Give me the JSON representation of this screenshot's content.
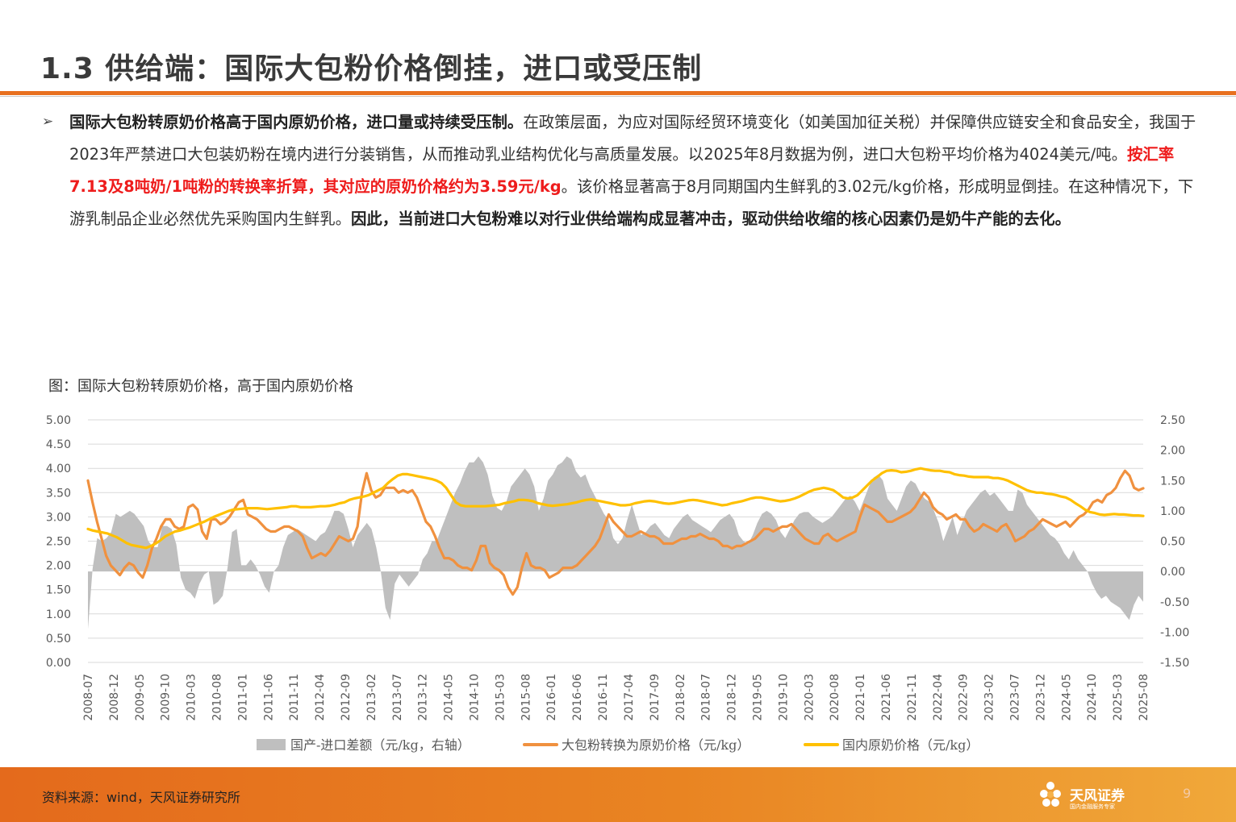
{
  "slide": {
    "title": "1.3 供给端：国际大包粉价格倒挂，进口或受压制",
    "page_number": "9"
  },
  "body": {
    "bullet_symbol": "➢",
    "s1_bold": "国际大包粉转原奶价格高于国内原奶价格，进口量或持续受压制。",
    "s2": "在政策层面，为应对国际经贸环境变化（如美国加征关税）并保障供应链安全和食品安全，我国于2023年严禁进口大包装奶粉在境内进行分装销售，从而推动乳业结构优化与高质量发展。以2025年8月数据为例，进口大包粉平均价格为4024美元/吨。",
    "s3_red": "按汇率7.13及8吨奶/1吨粉的转换率折算，其对应的原奶价格约为3.59元/kg",
    "s4": "。该价格显著高于8月同期国内生鲜乳的3.02元/kg价格，形成明显倒挂。在这种情况下，下游乳制品企业必然优先采购国内生鲜乳。",
    "s5_bold": "因此，当前进口大包粉难以对行业供给端构成显著冲击，驱动供给收缩的核心因素仍是奶牛产能的去化。"
  },
  "chart_caption": "图：国际大包粉转原奶价格，高于国内原奶价格",
  "footer": {
    "source": "资料来源：wind，天风证券研究所",
    "logo_text": "天风证券",
    "logo_sub": "国内金融服务专家"
  },
  "colors": {
    "area": "#bfbfbf",
    "import_line": "#f0913f",
    "domestic_line": "#ffc000",
    "grid": "#d9d9d9",
    "accent": "#e8701f"
  },
  "chart_data": {
    "type": "line",
    "title": "",
    "x_tick_labels": [
      "2008-07",
      "2008-12",
      "2009-05",
      "2009-10",
      "2010-03",
      "2010-08",
      "2011-01",
      "2011-06",
      "2011-11",
      "2012-04",
      "2012-09",
      "2013-02",
      "2013-07",
      "2013-12",
      "2014-05",
      "2014-10",
      "2015-03",
      "2015-08",
      "2016-01",
      "2016-06",
      "2016-11",
      "2017-04",
      "2017-09",
      "2018-02",
      "2018-07",
      "2018-12",
      "2019-05",
      "2019-10",
      "2020-03",
      "2020-08",
      "2021-01",
      "2021-06",
      "2021-11",
      "2022-04",
      "2022-09",
      "2023-02",
      "2023-07",
      "2023-12",
      "2024-05",
      "2024-10",
      "2025-03",
      "2025-08"
    ],
    "y_left": {
      "min": 0,
      "max": 5,
      "step": 0.5,
      "tick_labels": [
        "0.00",
        "0.50",
        "1.00",
        "1.50",
        "2.00",
        "2.50",
        "3.00",
        "3.50",
        "4.00",
        "4.50",
        "5.00"
      ]
    },
    "y_right": {
      "min": -1.5,
      "max": 2.5,
      "step": 0.5,
      "tick_labels": [
        "-1.50",
        "-1.00",
        "-0.50",
        "0.00",
        "0.50",
        "1.00",
        "1.50",
        "2.00",
        "2.50"
      ]
    },
    "grid": true,
    "legend_position": "bottom",
    "series": [
      {
        "name": "国产-进口差额（元/kg，右轴）",
        "kind": "area",
        "axis": "right",
        "values": [
          -0.95,
          0.05,
          0.55,
          0.5,
          0.55,
          0.65,
          0.95,
          0.9,
          0.95,
          1.0,
          0.95,
          0.85,
          0.75,
          0.5,
          0.4,
          0.4,
          0.75,
          0.75,
          0.7,
          0.45,
          -0.1,
          -0.3,
          -0.35,
          -0.45,
          -0.2,
          -0.05,
          0.0,
          -0.55,
          -0.5,
          -0.4,
          0.05,
          0.65,
          0.7,
          0.1,
          0.1,
          0.2,
          0.1,
          -0.05,
          -0.25,
          -0.35,
          0.0,
          0.1,
          0.4,
          0.6,
          0.65,
          0.7,
          0.65,
          0.6,
          0.55,
          0.5,
          0.6,
          0.65,
          0.8,
          1.0,
          1.0,
          0.95,
          0.7,
          0.4,
          0.6,
          0.7,
          0.8,
          0.7,
          0.4,
          0.0,
          -0.6,
          -0.8,
          -0.2,
          -0.05,
          -0.15,
          -0.25,
          -0.15,
          -0.05,
          0.2,
          0.3,
          0.5,
          0.5,
          0.7,
          0.9,
          1.1,
          1.3,
          1.45,
          1.65,
          1.8,
          1.8,
          1.9,
          1.8,
          1.6,
          1.25,
          1.05,
          1.0,
          1.15,
          1.4,
          1.5,
          1.6,
          1.7,
          1.6,
          1.4,
          1.0,
          1.2,
          1.5,
          1.6,
          1.75,
          1.8,
          1.9,
          1.85,
          1.65,
          1.55,
          1.6,
          1.4,
          1.25,
          1.1,
          0.95,
          0.85,
          0.55,
          0.45,
          0.55,
          0.85,
          1.1,
          0.85,
          0.6,
          0.65,
          0.75,
          0.8,
          0.7,
          0.6,
          0.55,
          0.7,
          0.8,
          0.9,
          0.95,
          0.85,
          0.8,
          0.75,
          0.7,
          0.65,
          0.75,
          0.85,
          0.9,
          0.95,
          0.85,
          0.6,
          0.5,
          0.45,
          0.6,
          0.8,
          0.95,
          1.0,
          0.95,
          0.85,
          0.65,
          0.55,
          0.7,
          0.85,
          0.95,
          0.98,
          0.98,
          0.9,
          0.85,
          0.8,
          0.85,
          0.9,
          1.0,
          1.1,
          1.2,
          1.25,
          1.15,
          1.0,
          1.2,
          1.4,
          1.55,
          1.6,
          1.5,
          1.2,
          1.1,
          1.0,
          1.2,
          1.4,
          1.5,
          1.45,
          1.3,
          1.2,
          1.15,
          1.0,
          0.8,
          0.5,
          0.7,
          0.9,
          0.6,
          0.8,
          1.0,
          1.1,
          1.2,
          1.3,
          1.35,
          1.25,
          1.3,
          1.2,
          1.1,
          1.0,
          1.0,
          1.35,
          1.3,
          1.1,
          1.0,
          0.9,
          0.8,
          0.7,
          0.6,
          0.55,
          0.45,
          0.3,
          0.2,
          0.35,
          0.2,
          0.1,
          0.0,
          -0.2,
          -0.35,
          -0.45,
          -0.4,
          -0.5,
          -0.55,
          -0.6,
          -0.7,
          -0.8,
          -0.55,
          -0.4,
          -0.5
        ]
      },
      {
        "name": "大包粉转换为原奶价格（元/kg）",
        "kind": "line",
        "axis": "left",
        "values": [
          3.75,
          3.3,
          2.9,
          2.55,
          2.2,
          2.0,
          1.9,
          1.8,
          1.95,
          2.05,
          2.0,
          1.85,
          1.75,
          2.0,
          2.35,
          2.55,
          2.8,
          2.95,
          2.95,
          2.8,
          2.75,
          2.8,
          3.2,
          3.25,
          3.15,
          2.7,
          2.55,
          2.95,
          2.95,
          2.85,
          2.9,
          3.0,
          3.15,
          3.3,
          3.35,
          3.05,
          3.0,
          2.95,
          2.85,
          2.75,
          2.7,
          2.7,
          2.75,
          2.8,
          2.8,
          2.75,
          2.7,
          2.6,
          2.35,
          2.15,
          2.2,
          2.25,
          2.2,
          2.3,
          2.45,
          2.6,
          2.55,
          2.5,
          2.55,
          2.8,
          3.5,
          3.9,
          3.55,
          3.4,
          3.45,
          3.6,
          3.6,
          3.6,
          3.5,
          3.55,
          3.5,
          3.55,
          3.4,
          3.15,
          2.9,
          2.8,
          2.6,
          2.35,
          2.15,
          2.15,
          2.1,
          2.0,
          1.95,
          1.95,
          1.9,
          2.1,
          2.4,
          2.4,
          2.05,
          1.95,
          1.9,
          1.8,
          1.55,
          1.4,
          1.55,
          1.95,
          2.25,
          2.0,
          1.95,
          1.95,
          1.9,
          1.75,
          1.8,
          1.85,
          1.95,
          1.95,
          1.95,
          2.0,
          2.1,
          2.2,
          2.3,
          2.4,
          2.55,
          2.8,
          3.05,
          2.9,
          2.8,
          2.7,
          2.6,
          2.6,
          2.65,
          2.7,
          2.65,
          2.6,
          2.6,
          2.55,
          2.45,
          2.45,
          2.45,
          2.5,
          2.55,
          2.55,
          2.6,
          2.6,
          2.65,
          2.6,
          2.55,
          2.55,
          2.5,
          2.4,
          2.4,
          2.35,
          2.4,
          2.4,
          2.45,
          2.5,
          2.55,
          2.65,
          2.75,
          2.75,
          2.7,
          2.75,
          2.8,
          2.8,
          2.85,
          2.75,
          2.65,
          2.55,
          2.5,
          2.45,
          2.45,
          2.6,
          2.65,
          2.55,
          2.5,
          2.55,
          2.6,
          2.65,
          2.7,
          3.0,
          3.25,
          3.2,
          3.15,
          3.1,
          3.0,
          2.9,
          2.9,
          2.95,
          3.0,
          3.05,
          3.1,
          3.2,
          3.35,
          3.5,
          3.4,
          3.2,
          3.1,
          3.05,
          2.95,
          3.0,
          3.05,
          2.95,
          2.95,
          2.8,
          2.7,
          2.75,
          2.85,
          2.8,
          2.75,
          2.7,
          2.8,
          2.85,
          2.7,
          2.5,
          2.55,
          2.6,
          2.7,
          2.75,
          2.85,
          2.95,
          2.9,
          2.85,
          2.8,
          2.85,
          2.9,
          2.8,
          2.9,
          3.0,
          3.05,
          3.15,
          3.3,
          3.35,
          3.3,
          3.45,
          3.5,
          3.6,
          3.8,
          3.95,
          3.85,
          3.6,
          3.55,
          3.59
        ]
      },
      {
        "name": "国内原奶价格（元/kg）",
        "kind": "line",
        "axis": "left",
        "values": [
          2.75,
          2.72,
          2.7,
          2.68,
          2.66,
          2.62,
          2.58,
          2.52,
          2.46,
          2.42,
          2.4,
          2.38,
          2.36,
          2.4,
          2.45,
          2.52,
          2.6,
          2.65,
          2.7,
          2.72,
          2.75,
          2.78,
          2.82,
          2.86,
          2.9,
          2.95,
          3.0,
          3.04,
          3.08,
          3.12,
          3.15,
          3.16,
          3.17,
          3.18,
          3.18,
          3.18,
          3.17,
          3.16,
          3.17,
          3.18,
          3.19,
          3.2,
          3.22,
          3.22,
          3.2,
          3.2,
          3.2,
          3.21,
          3.22,
          3.22,
          3.23,
          3.25,
          3.28,
          3.3,
          3.35,
          3.38,
          3.4,
          3.42,
          3.45,
          3.5,
          3.55,
          3.6,
          3.7,
          3.78,
          3.85,
          3.88,
          3.88,
          3.86,
          3.84,
          3.82,
          3.8,
          3.78,
          3.75,
          3.7,
          3.6,
          3.45,
          3.3,
          3.24,
          3.22,
          3.22,
          3.22,
          3.22,
          3.22,
          3.23,
          3.24,
          3.25,
          3.28,
          3.3,
          3.32,
          3.35,
          3.35,
          3.34,
          3.32,
          3.28,
          3.26,
          3.24,
          3.23,
          3.24,
          3.25,
          3.26,
          3.28,
          3.3,
          3.33,
          3.35,
          3.36,
          3.34,
          3.32,
          3.3,
          3.28,
          3.26,
          3.24,
          3.24,
          3.25,
          3.28,
          3.3,
          3.32,
          3.33,
          3.32,
          3.3,
          3.28,
          3.27,
          3.28,
          3.3,
          3.32,
          3.34,
          3.35,
          3.34,
          3.32,
          3.3,
          3.28,
          3.26,
          3.24,
          3.25,
          3.28,
          3.3,
          3.32,
          3.35,
          3.38,
          3.4,
          3.4,
          3.38,
          3.36,
          3.34,
          3.32,
          3.33,
          3.35,
          3.38,
          3.42,
          3.47,
          3.52,
          3.56,
          3.58,
          3.6,
          3.58,
          3.55,
          3.48,
          3.4,
          3.38,
          3.4,
          3.45,
          3.55,
          3.65,
          3.75,
          3.82,
          3.9,
          3.95,
          3.96,
          3.95,
          3.92,
          3.93,
          3.95,
          3.98,
          4.0,
          3.98,
          3.96,
          3.95,
          3.95,
          3.93,
          3.92,
          3.88,
          3.86,
          3.85,
          3.83,
          3.82,
          3.82,
          3.82,
          3.82,
          3.8,
          3.8,
          3.78,
          3.75,
          3.7,
          3.65,
          3.6,
          3.55,
          3.52,
          3.5,
          3.5,
          3.48,
          3.47,
          3.45,
          3.42,
          3.4,
          3.35,
          3.28,
          3.22,
          3.15,
          3.1,
          3.08,
          3.05,
          3.04,
          3.05,
          3.06,
          3.05,
          3.05,
          3.04,
          3.03,
          3.03,
          3.02
        ]
      }
    ]
  }
}
